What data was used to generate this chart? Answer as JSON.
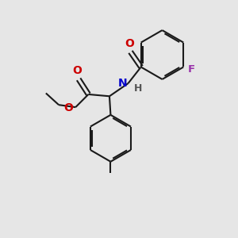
{
  "bg_color": "#e6e6e6",
  "bond_color": "#1a1a1a",
  "O_color": "#cc0000",
  "N_color": "#0000cc",
  "F_color": "#9933aa",
  "H_color": "#555555",
  "line_width": 1.5,
  "figsize": [
    3.0,
    3.0
  ],
  "dpi": 100,
  "xlim": [
    0,
    10
  ],
  "ylim": [
    0,
    10
  ]
}
